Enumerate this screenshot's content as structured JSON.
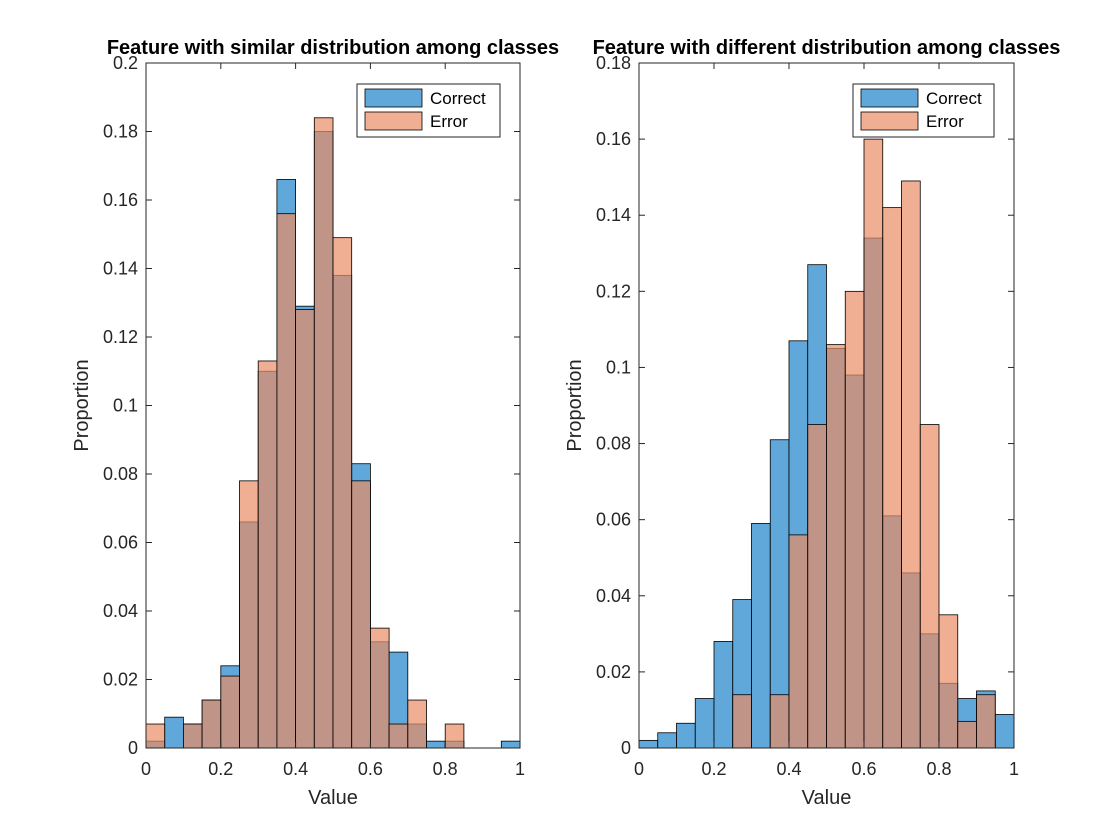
{
  "colors": {
    "correct": "#4f9fd6",
    "error": "#e98d65",
    "axes": "#262626"
  },
  "chart_data": [
    {
      "type": "histogram",
      "title": "Feature with similar distribution among classes",
      "xlabel": "Value",
      "ylabel": "Proportion",
      "xlim": [
        0,
        1
      ],
      "ylim": [
        0,
        0.2
      ],
      "xticks": [
        "0",
        "0.2",
        "0.4",
        "0.6",
        "0.8",
        "1"
      ],
      "yticks": [
        "0",
        "0.02",
        "0.04",
        "0.06",
        "0.08",
        "0.1",
        "0.12",
        "0.14",
        "0.16",
        "0.18",
        "0.2"
      ],
      "grid": false,
      "legend_location": "top-right",
      "bin_edges": [
        0,
        0.05,
        0.1,
        0.15,
        0.2,
        0.25,
        0.3,
        0.35,
        0.4,
        0.45,
        0.5,
        0.55,
        0.6,
        0.65,
        0.7,
        0.75,
        0.8,
        0.85,
        0.9,
        0.95,
        1.0
      ],
      "series": [
        {
          "name": "Correct",
          "values": [
            0.002,
            0.009,
            0.007,
            0.014,
            0.024,
            0.066,
            0.11,
            0.166,
            0.129,
            0.18,
            0.138,
            0.083,
            0.031,
            0.028,
            0.007,
            0.002,
            0.002,
            0,
            0,
            0.002
          ]
        },
        {
          "name": "Error",
          "values": [
            0.007,
            0,
            0.007,
            0.014,
            0.021,
            0.078,
            0.113,
            0.156,
            0.128,
            0.184,
            0.149,
            0.078,
            0.035,
            0.007,
            0.014,
            0,
            0.007,
            0,
            0,
            0
          ]
        }
      ]
    },
    {
      "type": "histogram",
      "title": "Feature with different distribution among classes",
      "xlabel": "Value",
      "ylabel": "Proportion",
      "xlim": [
        0,
        1
      ],
      "ylim": [
        0,
        0.18
      ],
      "xticks": [
        "0",
        "0.2",
        "0.4",
        "0.6",
        "0.8",
        "1"
      ],
      "yticks": [
        "0",
        "0.02",
        "0.04",
        "0.06",
        "0.08",
        "0.1",
        "0.12",
        "0.14",
        "0.16",
        "0.18"
      ],
      "grid": false,
      "legend_location": "top-right",
      "bin_edges": [
        0,
        0.05,
        0.1,
        0.15,
        0.2,
        0.25,
        0.3,
        0.35,
        0.4,
        0.45,
        0.5,
        0.55,
        0.6,
        0.65,
        0.7,
        0.75,
        0.8,
        0.85,
        0.9,
        0.95,
        1.0
      ],
      "series": [
        {
          "name": "Correct",
          "values": [
            0.002,
            0.004,
            0.0065,
            0.013,
            0.028,
            0.039,
            0.059,
            0.081,
            0.107,
            0.127,
            0.105,
            0.098,
            0.134,
            0.061,
            0.046,
            0.03,
            0.017,
            0.013,
            0.015,
            0.0088
          ]
        },
        {
          "name": "Error",
          "values": [
            0,
            0,
            0,
            0,
            0,
            0.014,
            0,
            0.014,
            0.056,
            0.085,
            0.106,
            0.12,
            0.16,
            0.142,
            0.149,
            0.085,
            0.035,
            0.007,
            0.014,
            0
          ]
        }
      ]
    }
  ]
}
